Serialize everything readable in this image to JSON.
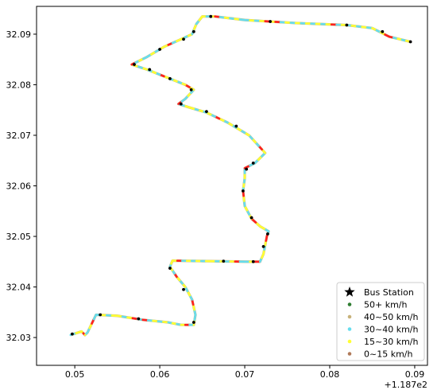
{
  "chart_data": {
    "type": "scatter",
    "title": "",
    "xlabel": "",
    "ylabel": "",
    "xlim": [
      0.0455,
      0.0915
    ],
    "ylim": [
      32.0245,
      32.0955
    ],
    "x_offset_label": "+1.187e2",
    "x_ticks": [
      0.05,
      0.06,
      0.07,
      0.08,
      0.09
    ],
    "x_tick_labels": [
      "0.05",
      "0.06",
      "0.07",
      "0.08",
      "0.09"
    ],
    "y_ticks": [
      32.03,
      32.04,
      32.05,
      32.06,
      32.07,
      32.08,
      32.09
    ],
    "y_tick_labels": [
      "32.03",
      "32.04",
      "32.05",
      "32.06",
      "32.07",
      "32.08",
      "32.09"
    ],
    "grid": false,
    "legend_position": "lower-right",
    "legend": [
      {
        "label": "Bus Station",
        "marker": "star",
        "color": "#000000"
      },
      {
        "label": "50+ km/h",
        "marker": "dot",
        "color": "#2e7d32"
      },
      {
        "label": "40~50 km/h",
        "marker": "dot",
        "color": "#c8b27a"
      },
      {
        "label": "30~40 km/h",
        "marker": "dot",
        "color": "#66ddee"
      },
      {
        "label": "15~30 km/h",
        "marker": "dot",
        "color": "#ffff33"
      },
      {
        "label": "0~15 km/h",
        "marker": "dot",
        "color": "#b07a5a"
      }
    ],
    "route": [
      [
        0.0495,
        32.0305
      ],
      [
        0.0508,
        32.0312
      ],
      [
        0.0512,
        32.0305
      ],
      [
        0.0515,
        32.031
      ],
      [
        0.0525,
        32.0345
      ],
      [
        0.055,
        32.0343
      ],
      [
        0.058,
        32.0335
      ],
      [
        0.061,
        32.033
      ],
      [
        0.0625,
        32.0325
      ],
      [
        0.064,
        32.0325
      ],
      [
        0.0642,
        32.0345
      ],
      [
        0.0638,
        32.0375
      ],
      [
        0.063,
        32.04
      ],
      [
        0.062,
        32.042
      ],
      [
        0.0612,
        32.044
      ],
      [
        0.0615,
        32.0452
      ],
      [
        0.066,
        32.0451
      ],
      [
        0.07,
        32.045
      ],
      [
        0.0718,
        32.045
      ],
      [
        0.0722,
        32.0465
      ],
      [
        0.0726,
        32.05
      ],
      [
        0.0728,
        32.051
      ],
      [
        0.0718,
        32.052
      ],
      [
        0.0708,
        32.0535
      ],
      [
        0.07,
        32.056
      ],
      [
        0.0698,
        32.059
      ],
      [
        0.07,
        32.0615
      ],
      [
        0.07,
        32.0635
      ],
      [
        0.0712,
        32.0645
      ],
      [
        0.0724,
        32.0665
      ],
      [
        0.0705,
        32.07
      ],
      [
        0.068,
        32.0725
      ],
      [
        0.0655,
        32.0745
      ],
      [
        0.0635,
        32.0755
      ],
      [
        0.0622,
        32.0762
      ],
      [
        0.063,
        32.0772
      ],
      [
        0.064,
        32.079
      ],
      [
        0.063,
        32.08
      ],
      [
        0.0615,
        32.081
      ],
      [
        0.06,
        32.082
      ],
      [
        0.0585,
        32.083
      ],
      [
        0.0567,
        32.084
      ],
      [
        0.0585,
        32.0855
      ],
      [
        0.0605,
        32.0875
      ],
      [
        0.0625,
        32.089
      ],
      [
        0.0638,
        32.09
      ],
      [
        0.0643,
        32.092
      ],
      [
        0.065,
        32.0935
      ],
      [
        0.0665,
        32.0935
      ],
      [
        0.07,
        32.0928
      ],
      [
        0.073,
        32.0925
      ],
      [
        0.076,
        32.0922
      ],
      [
        0.079,
        32.092
      ],
      [
        0.082,
        32.0918
      ],
      [
        0.085,
        32.0912
      ],
      [
        0.087,
        32.0895
      ],
      [
        0.0895,
        32.0885
      ]
    ],
    "bus_stations": [
      [
        0.0497,
        32.0307
      ],
      [
        0.053,
        32.0345
      ],
      [
        0.0575,
        32.0337
      ],
      [
        0.064,
        32.033
      ],
      [
        0.0628,
        32.0395
      ],
      [
        0.0612,
        32.0437
      ],
      [
        0.0675,
        32.0451
      ],
      [
        0.071,
        32.045
      ],
      [
        0.0722,
        32.048
      ],
      [
        0.0727,
        32.0505
      ],
      [
        0.0708,
        32.0537
      ],
      [
        0.0698,
        32.059
      ],
      [
        0.0702,
        32.0633
      ],
      [
        0.071,
        32.0645
      ],
      [
        0.069,
        32.0718
      ],
      [
        0.0655,
        32.0747
      ],
      [
        0.0625,
        32.0762
      ],
      [
        0.0637,
        32.079
      ],
      [
        0.0612,
        32.0812
      ],
      [
        0.0588,
        32.083
      ],
      [
        0.057,
        32.084
      ],
      [
        0.06,
        32.087
      ],
      [
        0.0628,
        32.089
      ],
      [
        0.064,
        32.0905
      ],
      [
        0.066,
        32.0935
      ],
      [
        0.073,
        32.0925
      ],
      [
        0.082,
        32.0918
      ],
      [
        0.0862,
        32.0905
      ],
      [
        0.0895,
        32.0885
      ]
    ]
  }
}
